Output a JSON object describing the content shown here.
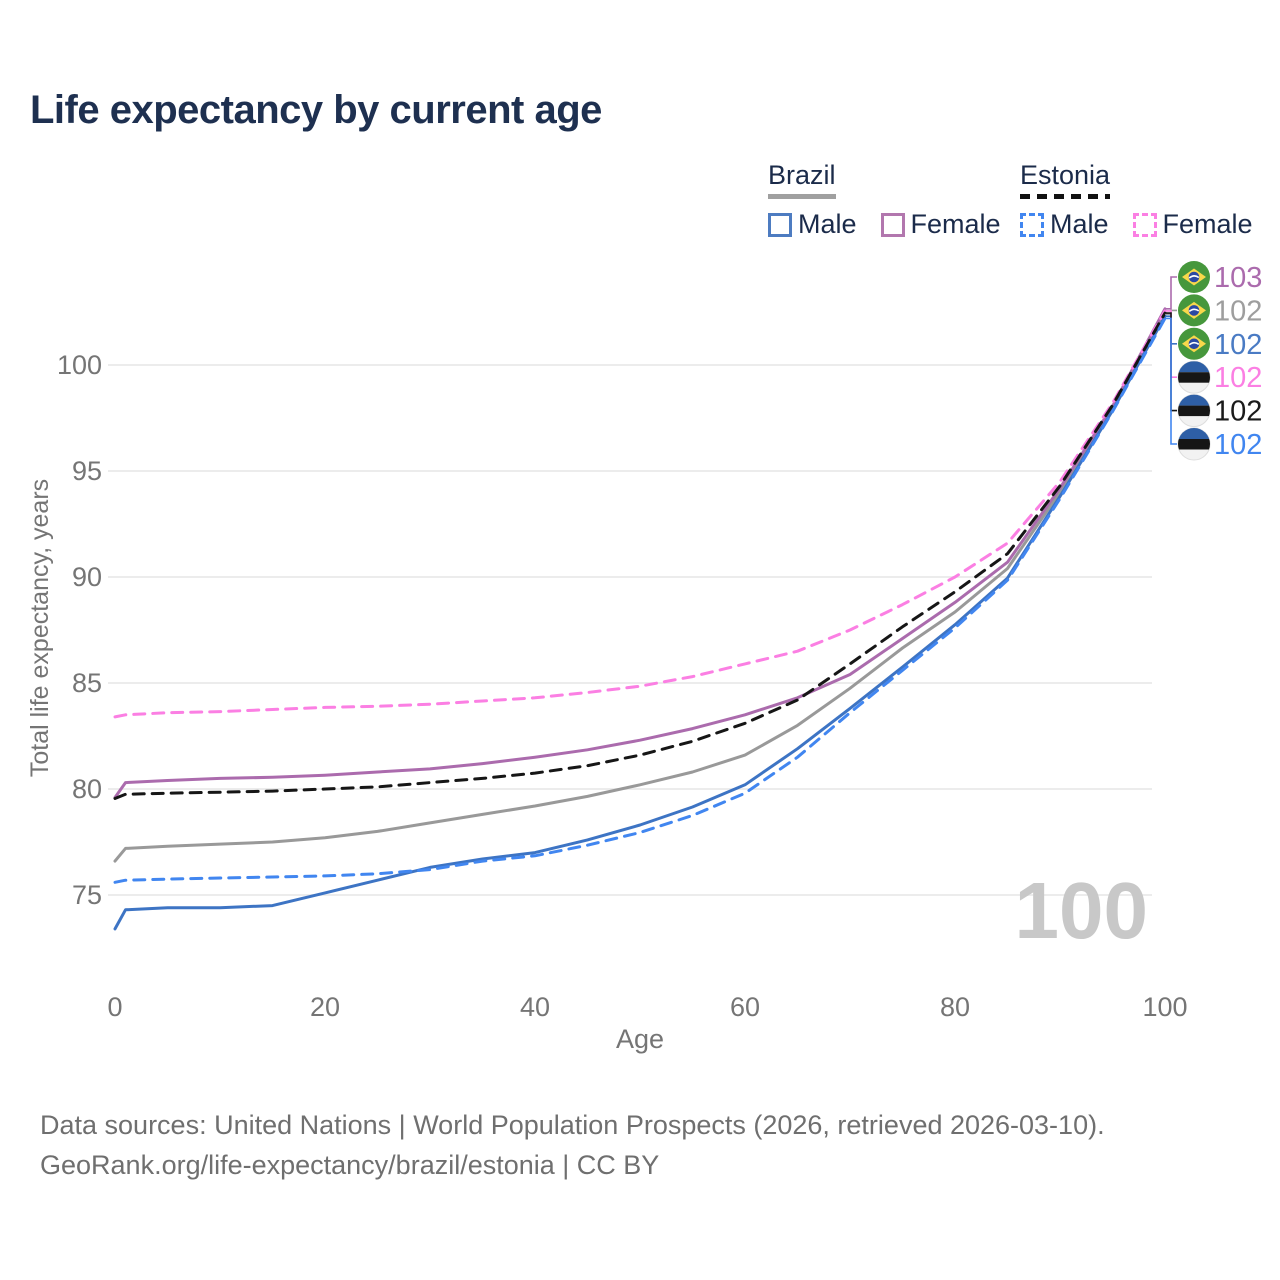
{
  "title": "Life expectancy by current age",
  "legend": {
    "groups": [
      {
        "label": "Brazil",
        "line_style": "solid",
        "underline_color": "#a0a0a0",
        "items": [
          {
            "label": "Male",
            "color": "#3d74c4",
            "style": "solid"
          },
          {
            "label": "Female",
            "color": "#b277ae",
            "style": "solid"
          }
        ]
      },
      {
        "label": "Estonia",
        "line_style": "dashed",
        "underline_color": "#111111",
        "items": [
          {
            "label": "Male",
            "color": "#4186f0",
            "style": "dashed"
          },
          {
            "label": "Female",
            "color": "#fb7fe3",
            "style": "dashed"
          }
        ]
      }
    ]
  },
  "watermark": "100",
  "chart_data": {
    "type": "line",
    "title": "Life expectancy by current age",
    "xlabel": "Age",
    "ylabel": "Total life expectancy, years",
    "xlim": [
      0,
      100
    ],
    "ylim": [
      73,
      104
    ],
    "xticks": [
      0,
      20,
      40,
      60,
      80,
      100
    ],
    "yticks": [
      75,
      80,
      85,
      90,
      95,
      100
    ],
    "grid": "horizontal-only",
    "legend_position": "top-right",
    "x": [
      0,
      1,
      5,
      10,
      15,
      20,
      25,
      30,
      35,
      40,
      45,
      50,
      55,
      60,
      65,
      70,
      75,
      80,
      85,
      90,
      95,
      100
    ],
    "series": [
      {
        "name": "Brazil Total",
        "country": "brazil",
        "group": "Total",
        "color": "#999999",
        "dash": "solid",
        "end_label": "102",
        "label_color": "#9e9e9e",
        "label_row": 1,
        "values": [
          76.6,
          77.2,
          77.3,
          77.4,
          77.5,
          77.7,
          78.0,
          78.4,
          78.8,
          79.2,
          79.65,
          80.2,
          80.8,
          81.6,
          83.0,
          84.75,
          86.65,
          88.35,
          90.4,
          94.0,
          97.95,
          102.4
        ]
      },
      {
        "name": "Brazil Female",
        "country": "brazil",
        "group": "Female",
        "color": "#ab6bad",
        "dash": "solid",
        "end_label": "103",
        "label_color": "#ab6bad",
        "label_row": 0,
        "values": [
          79.6,
          80.3,
          80.4,
          80.5,
          80.55,
          80.65,
          80.8,
          80.95,
          81.2,
          81.5,
          81.85,
          82.3,
          82.85,
          83.5,
          84.3,
          85.4,
          87.1,
          88.8,
          90.7,
          94.2,
          98.05,
          102.65
        ]
      },
      {
        "name": "Brazil Male",
        "country": "brazil",
        "group": "Male",
        "color": "#3d74c4",
        "dash": "solid",
        "end_label": "102",
        "label_color": "#4a7bc4",
        "label_row": 2,
        "values": [
          73.4,
          74.3,
          74.4,
          74.4,
          74.5,
          75.1,
          75.7,
          76.3,
          76.7,
          77.0,
          77.6,
          78.3,
          79.15,
          80.2,
          81.9,
          83.8,
          85.75,
          87.75,
          89.95,
          93.8,
          97.85,
          102.3
        ]
      },
      {
        "name": "Estonia Female",
        "country": "estonia",
        "group": "Female",
        "color": "#fb7fe3",
        "dash": "dashed",
        "end_label": "102",
        "label_color": "#fb7fe3",
        "label_row": 3,
        "values": [
          83.4,
          83.5,
          83.6,
          83.65,
          83.75,
          83.85,
          83.9,
          84.0,
          84.15,
          84.3,
          84.55,
          84.85,
          85.3,
          85.9,
          86.5,
          87.5,
          88.7,
          90.0,
          91.6,
          94.5,
          98.2,
          102.55
        ]
      },
      {
        "name": "Estonia Total",
        "country": "estonia",
        "group": "Total",
        "color": "#161616",
        "dash": "dashed",
        "end_label": "102",
        "label_color": "#1a1a1a",
        "label_row": 4,
        "values": [
          79.55,
          79.75,
          79.8,
          79.85,
          79.9,
          80.0,
          80.1,
          80.3,
          80.5,
          80.75,
          81.1,
          81.6,
          82.25,
          83.1,
          84.2,
          85.9,
          87.65,
          89.3,
          91.1,
          94.3,
          98.1,
          102.45
        ]
      },
      {
        "name": "Estonia Male",
        "country": "estonia",
        "group": "Male",
        "color": "#4186f0",
        "dash": "dashed",
        "end_label": "102",
        "label_color": "#4186f0",
        "label_row": 5,
        "values": [
          75.6,
          75.7,
          75.75,
          75.8,
          75.85,
          75.9,
          76.0,
          76.2,
          76.6,
          76.85,
          77.35,
          77.95,
          78.75,
          79.8,
          81.5,
          83.6,
          85.6,
          87.6,
          89.85,
          93.7,
          97.8,
          102.2
        ]
      }
    ]
  },
  "footer": {
    "line1": "Data sources: United Nations | World Population Prospects (2026, retrieved 2026-03-10).",
    "line2": "GeoRank.org/life-expectancy/brazil/estonia | CC BY"
  }
}
